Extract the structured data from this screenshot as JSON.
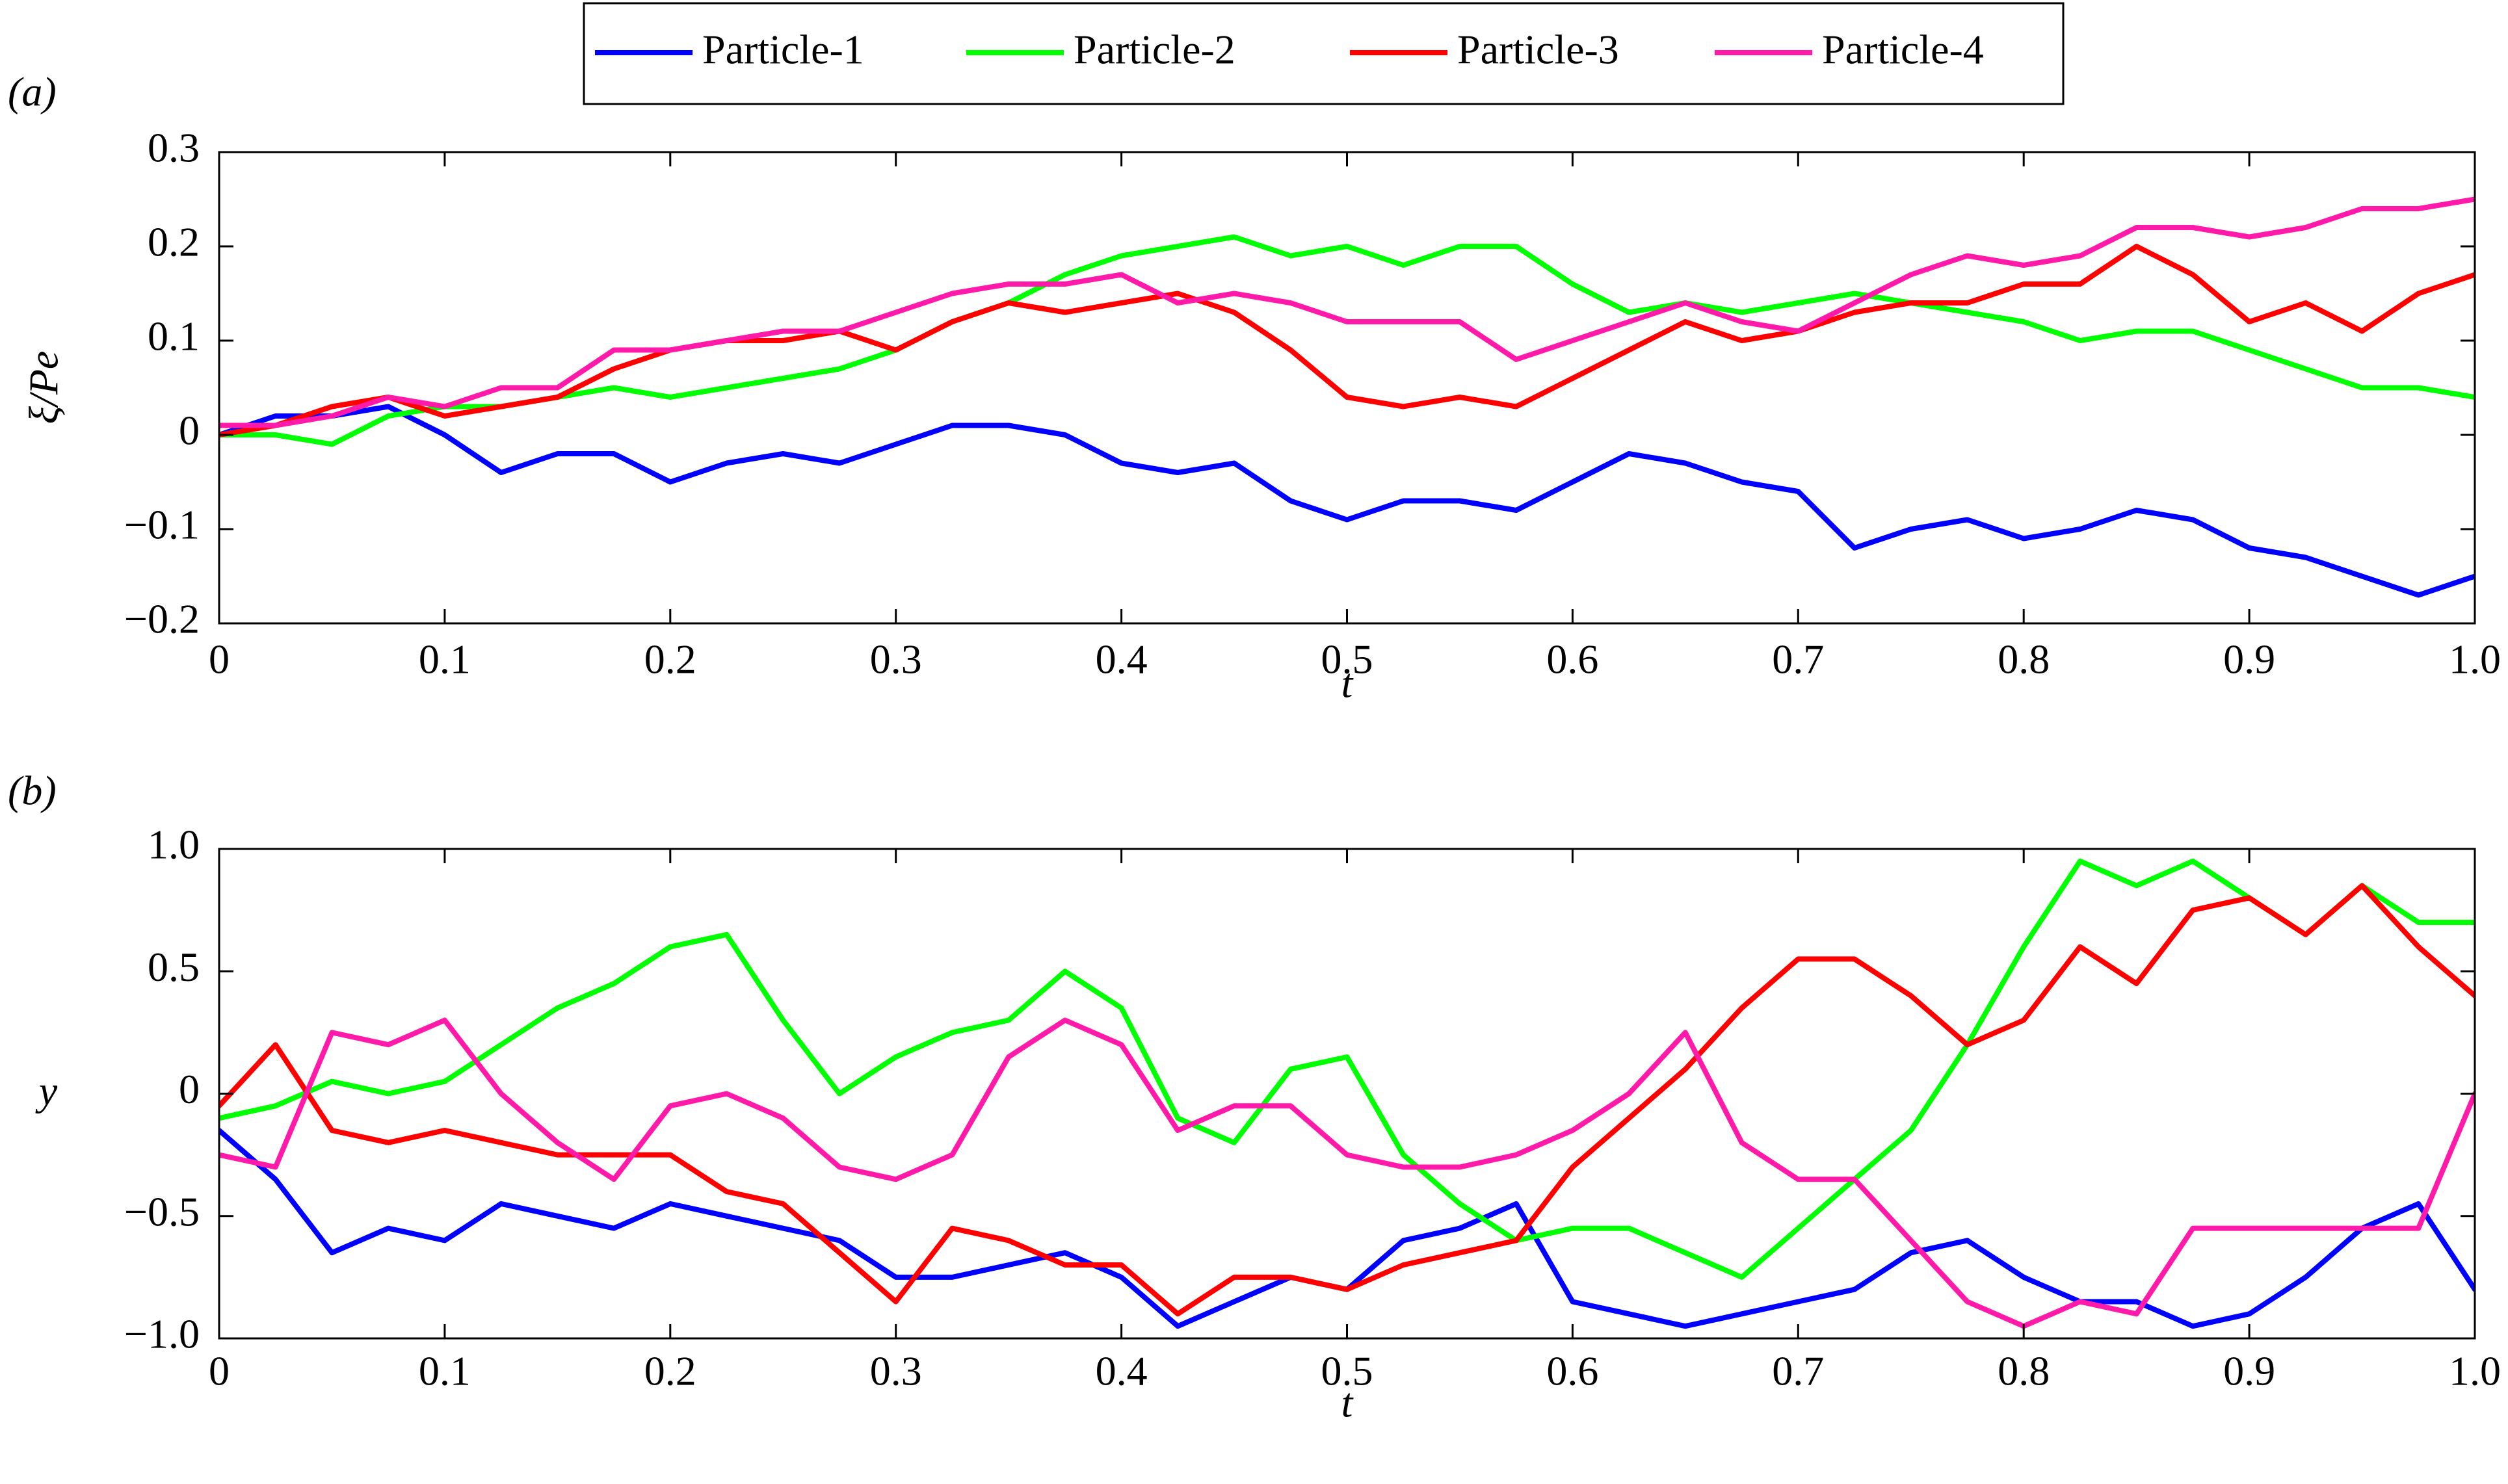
{
  "chart_data": [
    {
      "type": "line",
      "panel_label": "(a)",
      "x_label": "t",
      "y_label": "ξ/Pe",
      "legend": "top",
      "x": [
        0,
        0.025,
        0.05,
        0.075,
        0.1,
        0.125,
        0.15,
        0.175,
        0.2,
        0.225,
        0.25,
        0.275,
        0.3,
        0.325,
        0.35,
        0.375,
        0.4,
        0.425,
        0.45,
        0.475,
        0.5,
        0.525,
        0.55,
        0.575,
        0.6,
        0.625,
        0.65,
        0.675,
        0.7,
        0.725,
        0.75,
        0.775,
        0.8,
        0.825,
        0.85,
        0.875,
        0.9,
        0.925,
        0.95,
        0.975,
        1
      ],
      "xlim": [
        0,
        1
      ],
      "xticks": [
        0,
        0.1,
        0.2,
        0.3,
        0.4,
        0.5,
        0.6,
        0.7,
        0.8,
        0.9,
        {
          "value": 1,
          "label": "1.0"
        }
      ],
      "ylim": [
        -0.2,
        0.3
      ],
      "yticks": [
        {
          "value": -0.2,
          "label": "−0.2"
        },
        {
          "value": -0.1,
          "label": "−0.1"
        },
        0,
        0.1,
        0.2,
        0.3
      ],
      "series": [
        {
          "name": "Particle-1",
          "color": "#0000ff",
          "values": [
            0,
            0.02,
            0.02,
            0.03,
            0,
            -0.04,
            -0.02,
            -0.02,
            -0.05,
            -0.03,
            -0.02,
            -0.03,
            -0.01,
            0.01,
            0.01,
            0,
            -0.03,
            -0.04,
            -0.03,
            -0.07,
            -0.09,
            -0.07,
            -0.07,
            -0.08,
            -0.05,
            -0.02,
            -0.03,
            -0.05,
            -0.06,
            -0.12,
            -0.1,
            -0.09,
            -0.11,
            -0.1,
            -0.08,
            -0.09,
            -0.12,
            -0.13,
            -0.15,
            -0.17,
            -0.15
          ]
        },
        {
          "name": "Particle-2",
          "color": "#00ff00",
          "values": [
            0,
            0,
            -0.01,
            0.02,
            0.03,
            0.03,
            0.04,
            0.05,
            0.04,
            0.05,
            0.06,
            0.07,
            0.09,
            0.12,
            0.14,
            0.17,
            0.19,
            0.2,
            0.21,
            0.19,
            0.2,
            0.18,
            0.2,
            0.2,
            0.16,
            0.13,
            0.14,
            0.13,
            0.14,
            0.15,
            0.14,
            0.13,
            0.12,
            0.1,
            0.11,
            0.11,
            0.09,
            0.07,
            0.05,
            0.05,
            0.04
          ]
        },
        {
          "name": "Particle-3",
          "color": "#ff0000",
          "values": [
            0,
            0.01,
            0.03,
            0.04,
            0.02,
            0.03,
            0.04,
            0.07,
            0.09,
            0.1,
            0.1,
            0.11,
            0.09,
            0.12,
            0.14,
            0.13,
            0.14,
            0.15,
            0.13,
            0.09,
            0.04,
            0.03,
            0.04,
            0.03,
            0.06,
            0.09,
            0.12,
            0.1,
            0.11,
            0.13,
            0.14,
            0.14,
            0.16,
            0.16,
            0.2,
            0.17,
            0.12,
            0.14,
            0.11,
            0.15,
            0.17
          ]
        },
        {
          "name": "Particle-4",
          "color": "#ff1aaa",
          "values": [
            0.01,
            0.01,
            0.02,
            0.04,
            0.03,
            0.05,
            0.05,
            0.09,
            0.09,
            0.1,
            0.11,
            0.11,
            0.13,
            0.15,
            0.16,
            0.16,
            0.17,
            0.14,
            0.15,
            0.14,
            0.12,
            0.12,
            0.12,
            0.08,
            0.1,
            0.12,
            0.14,
            0.12,
            0.11,
            0.14,
            0.17,
            0.19,
            0.18,
            0.19,
            0.22,
            0.22,
            0.21,
            0.22,
            0.24,
            0.24,
            0.25
          ]
        }
      ]
    },
    {
      "type": "line",
      "panel_label": "(b)",
      "x_label": "t",
      "y_label": "y",
      "x": [
        0,
        0.025,
        0.05,
        0.075,
        0.1,
        0.125,
        0.15,
        0.175,
        0.2,
        0.225,
        0.25,
        0.275,
        0.3,
        0.325,
        0.35,
        0.375,
        0.4,
        0.425,
        0.45,
        0.475,
        0.5,
        0.525,
        0.55,
        0.575,
        0.6,
        0.625,
        0.65,
        0.675,
        0.7,
        0.725,
        0.75,
        0.775,
        0.8,
        0.825,
        0.85,
        0.875,
        0.9,
        0.925,
        0.95,
        0.975,
        1
      ],
      "xlim": [
        0,
        1
      ],
      "xticks": [
        0,
        0.1,
        0.2,
        0.3,
        0.4,
        0.5,
        0.6,
        0.7,
        0.8,
        0.9,
        {
          "value": 1,
          "label": "1.0"
        }
      ],
      "ylim": [
        -1,
        1
      ],
      "yticks": [
        {
          "value": -1,
          "label": "−1.0"
        },
        {
          "value": -0.5,
          "label": "−0.5"
        },
        0,
        0.5,
        {
          "value": 1,
          "label": "1.0"
        }
      ],
      "series": [
        {
          "color": "#0000ff",
          "values": [
            -0.15,
            -0.35,
            -0.65,
            -0.55,
            -0.6,
            -0.45,
            -0.5,
            -0.55,
            -0.45,
            -0.5,
            -0.55,
            -0.6,
            -0.75,
            -0.75,
            -0.7,
            -0.65,
            -0.75,
            -0.95,
            -0.85,
            -0.75,
            -0.8,
            -0.6,
            -0.55,
            -0.45,
            -0.85,
            -0.9,
            -0.95,
            -0.9,
            -0.85,
            -0.8,
            -0.65,
            -0.6,
            -0.75,
            -0.85,
            -0.85,
            -0.95,
            -0.9,
            -0.75,
            -0.55,
            -0.45,
            -0.8
          ]
        },
        {
          "color": "#00ff00",
          "values": [
            -0.1,
            -0.05,
            0.05,
            0,
            0.05,
            0.2,
            0.35,
            0.45,
            0.6,
            0.65,
            0.3,
            0,
            0.15,
            0.25,
            0.3,
            0.5,
            0.35,
            -0.1,
            -0.2,
            0.1,
            0.15,
            -0.25,
            -0.45,
            -0.6,
            -0.55,
            -0.55,
            -0.65,
            -0.75,
            -0.55,
            -0.35,
            -0.15,
            0.2,
            0.6,
            0.95,
            0.85,
            0.95,
            0.8,
            0.65,
            0.85,
            0.7,
            0.7
          ]
        },
        {
          "color": "#ff0000",
          "values": [
            -0.05,
            0.2,
            -0.15,
            -0.2,
            -0.15,
            -0.2,
            -0.25,
            -0.25,
            -0.25,
            -0.4,
            -0.45,
            -0.65,
            -0.85,
            -0.55,
            -0.6,
            -0.7,
            -0.7,
            -0.9,
            -0.75,
            -0.75,
            -0.8,
            -0.7,
            -0.65,
            -0.6,
            -0.3,
            -0.1,
            0.1,
            0.35,
            0.55,
            0.55,
            0.4,
            0.2,
            0.3,
            0.6,
            0.45,
            0.75,
            0.8,
            0.65,
            0.85,
            0.6,
            0.4
          ]
        },
        {
          "color": "#ff1aaa",
          "values": [
            -0.25,
            -0.3,
            0.25,
            0.2,
            0.3,
            0,
            -0.2,
            -0.35,
            -0.05,
            0,
            -0.1,
            -0.3,
            -0.35,
            -0.25,
            0.15,
            0.3,
            0.2,
            -0.15,
            -0.05,
            -0.05,
            -0.25,
            -0.3,
            -0.3,
            -0.25,
            -0.15,
            0,
            0.25,
            -0.2,
            -0.35,
            -0.35,
            -0.6,
            -0.85,
            -0.95,
            -0.85,
            -0.9,
            -0.55,
            -0.55,
            -0.55,
            -0.55,
            -0.55,
            0
          ]
        }
      ]
    }
  ]
}
